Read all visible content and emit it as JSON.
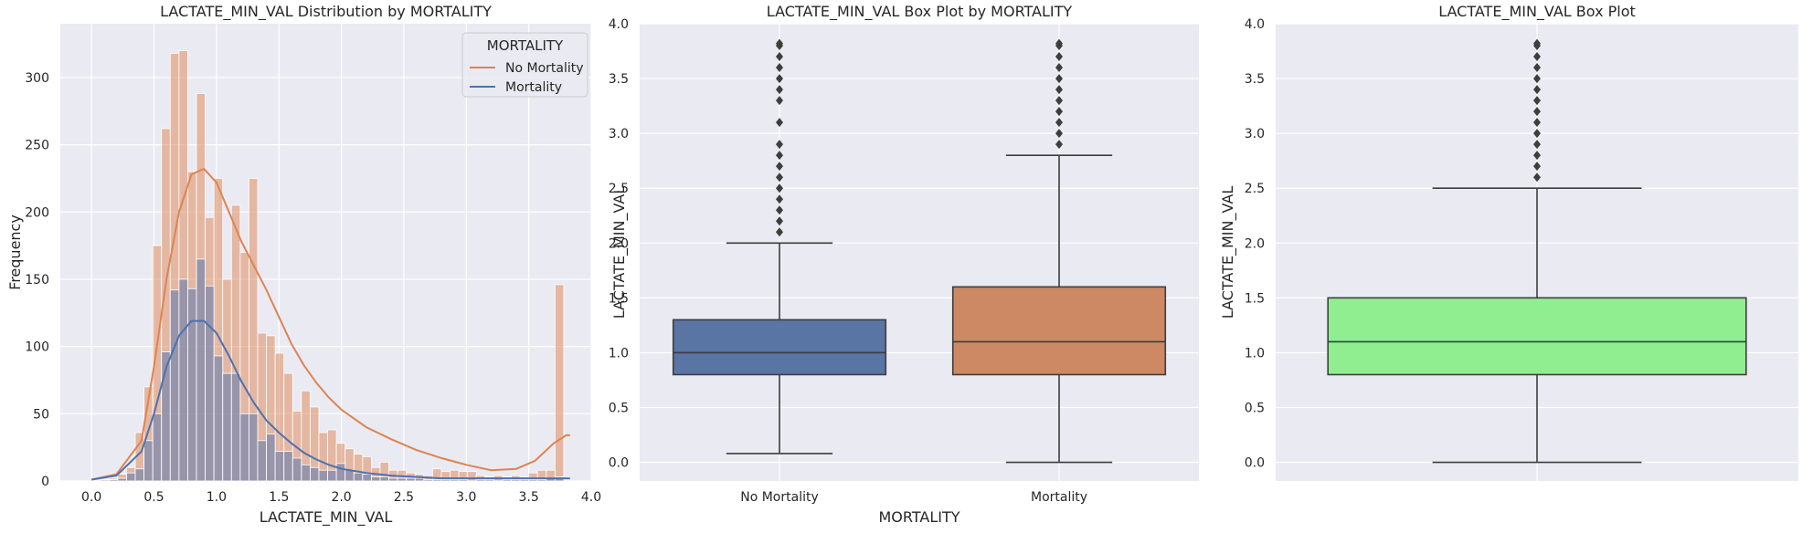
{
  "chart_data": [
    {
      "type": "histogram",
      "title": "LACTATE_MIN_VAL Distribution by MORTALITY",
      "xlabel": "LACTATE_MIN_VAL",
      "ylabel": "Frequency",
      "xlim": [
        -0.25,
        4.0
      ],
      "ylim": [
        0,
        340
      ],
      "xticks": [
        "0.0",
        "0.5",
        "1.0",
        "1.5",
        "2.0",
        "2.5",
        "3.0",
        "3.5",
        "4.0"
      ],
      "yticks": [
        "0",
        "50",
        "100",
        "150",
        "200",
        "250",
        "300"
      ],
      "legend": {
        "title": "MORTALITY",
        "position": "top-right",
        "entries": [
          {
            "name": "No Mortality",
            "color": "#dd8452"
          },
          {
            "name": "Mortality",
            "color": "#4c72b0"
          }
        ]
      },
      "bin_width": 0.07,
      "bins": [
        0.0,
        0.07,
        0.14,
        0.21,
        0.28,
        0.35,
        0.42,
        0.49,
        0.56,
        0.63,
        0.7,
        0.77,
        0.84,
        0.91,
        0.98,
        1.05,
        1.12,
        1.19,
        1.26,
        1.33,
        1.4,
        1.47,
        1.54,
        1.61,
        1.68,
        1.75,
        1.82,
        1.89,
        1.96,
        2.03,
        2.1,
        2.17,
        2.24,
        2.31,
        2.38,
        2.45,
        2.52,
        2.59,
        2.66,
        2.73,
        2.8,
        2.87,
        2.94,
        3.01,
        3.08,
        3.15,
        3.22,
        3.29,
        3.36,
        3.43,
        3.5,
        3.57,
        3.64,
        3.71,
        3.78
      ],
      "series": [
        {
          "name": "No Mortality",
          "color": "#dd8452",
          "values": [
            0,
            1,
            2,
            5,
            10,
            36,
            70,
            175,
            262,
            318,
            320,
            230,
            288,
            196,
            225,
            150,
            205,
            170,
            225,
            110,
            108,
            95,
            80,
            52,
            67,
            55,
            36,
            38,
            28,
            24,
            20,
            18,
            10,
            14,
            8,
            8,
            6,
            5,
            4,
            9,
            7,
            8,
            7,
            7,
            4,
            3,
            4,
            3,
            4,
            3,
            6,
            8,
            8,
            146
          ],
          "kde": [
            [
              0.0,
              1
            ],
            [
              0.2,
              5
            ],
            [
              0.4,
              30
            ],
            [
              0.5,
              85
            ],
            [
              0.6,
              150
            ],
            [
              0.7,
              200
            ],
            [
              0.8,
              228
            ],
            [
              0.9,
              232
            ],
            [
              1.0,
              222
            ],
            [
              1.1,
              200
            ],
            [
              1.2,
              178
            ],
            [
              1.3,
              160
            ],
            [
              1.4,
              142
            ],
            [
              1.5,
              122
            ],
            [
              1.6,
              102
            ],
            [
              1.7,
              86
            ],
            [
              1.8,
              73
            ],
            [
              1.9,
              62
            ],
            [
              2.0,
              53
            ],
            [
              2.2,
              40
            ],
            [
              2.4,
              31
            ],
            [
              2.6,
              23
            ],
            [
              2.8,
              17
            ],
            [
              3.0,
              12
            ],
            [
              3.2,
              8
            ],
            [
              3.4,
              9
            ],
            [
              3.55,
              15
            ],
            [
              3.7,
              28
            ],
            [
              3.8,
              34
            ],
            [
              3.83,
              34
            ]
          ]
        },
        {
          "name": "Mortality",
          "color": "#4c72b0",
          "values": [
            0,
            0,
            1,
            2,
            6,
            9,
            30,
            50,
            96,
            142,
            150,
            143,
            165,
            145,
            93,
            80,
            80,
            50,
            50,
            30,
            35,
            22,
            22,
            17,
            12,
            10,
            8,
            8,
            13,
            8,
            6,
            5,
            3,
            3,
            2,
            2,
            2,
            2,
            1,
            1,
            1,
            1,
            1,
            0,
            1,
            1,
            0,
            1,
            1,
            1,
            1,
            1,
            2,
            3
          ],
          "kde": [
            [
              0.0,
              1
            ],
            [
              0.2,
              4
            ],
            [
              0.4,
              22
            ],
            [
              0.5,
              50
            ],
            [
              0.6,
              85
            ],
            [
              0.7,
              108
            ],
            [
              0.8,
              119
            ],
            [
              0.9,
              119
            ],
            [
              1.0,
              110
            ],
            [
              1.1,
              93
            ],
            [
              1.2,
              74
            ],
            [
              1.3,
              58
            ],
            [
              1.4,
              45
            ],
            [
              1.5,
              36
            ],
            [
              1.6,
              28
            ],
            [
              1.7,
              21
            ],
            [
              1.8,
              16
            ],
            [
              1.9,
              12
            ],
            [
              2.0,
              9
            ],
            [
              2.2,
              6
            ],
            [
              2.4,
              4
            ],
            [
              2.6,
              3
            ],
            [
              2.8,
              2
            ],
            [
              3.0,
              2
            ],
            [
              3.3,
              2
            ],
            [
              3.6,
              2
            ],
            [
              3.83,
              2
            ]
          ]
        }
      ]
    },
    {
      "type": "box",
      "title": "LACTATE_MIN_VAL Box Plot by MORTALITY",
      "xlabel": "MORTALITY",
      "ylabel": "LACTATE_MIN_VAL",
      "ylim": [
        -0.17,
        4.0
      ],
      "yticks": [
        "0.0",
        "0.5",
        "1.0",
        "1.5",
        "2.0",
        "2.5",
        "3.0",
        "3.5",
        "4.0"
      ],
      "categories": [
        "No Mortality",
        "Mortality"
      ],
      "boxes": [
        {
          "name": "No Mortality",
          "color": "#5975a4",
          "whisker_low": 0.08,
          "q1": 0.8,
          "median": 1.0,
          "q3": 1.3,
          "whisker_high": 2.0,
          "outliers": [
            2.1,
            2.2,
            2.3,
            2.4,
            2.5,
            2.6,
            2.7,
            2.8,
            2.9,
            3.1,
            3.3,
            3.4,
            3.5,
            3.6,
            3.7,
            3.8,
            3.82
          ]
        },
        {
          "name": "Mortality",
          "color": "#cc8963",
          "whisker_low": 0.0,
          "q1": 0.8,
          "median": 1.1,
          "q3": 1.6,
          "whisker_high": 2.8,
          "outliers": [
            2.9,
            3.0,
            3.1,
            3.2,
            3.3,
            3.4,
            3.5,
            3.6,
            3.7,
            3.8,
            3.82
          ]
        }
      ]
    },
    {
      "type": "box",
      "title": "LACTATE_MIN_VAL Box Plot",
      "xlabel": "",
      "ylabel": "LACTATE_MIN_VAL",
      "ylim": [
        -0.17,
        4.0
      ],
      "yticks": [
        "0.0",
        "0.5",
        "1.0",
        "1.5",
        "2.0",
        "2.5",
        "3.0",
        "3.5",
        "4.0"
      ],
      "boxes": [
        {
          "name": "",
          "color": "#90ee90",
          "whisker_low": 0.0,
          "q1": 0.8,
          "median": 1.1,
          "q3": 1.5,
          "whisker_high": 2.5,
          "outliers": [
            2.6,
            2.7,
            2.8,
            2.9,
            3.0,
            3.1,
            3.2,
            3.3,
            3.4,
            3.5,
            3.6,
            3.7,
            3.8,
            3.82
          ]
        }
      ]
    }
  ],
  "colors": {
    "panel_bg": "#eaeaf2",
    "grid": "#ffffff",
    "box_edge": "#3d3d3d"
  }
}
